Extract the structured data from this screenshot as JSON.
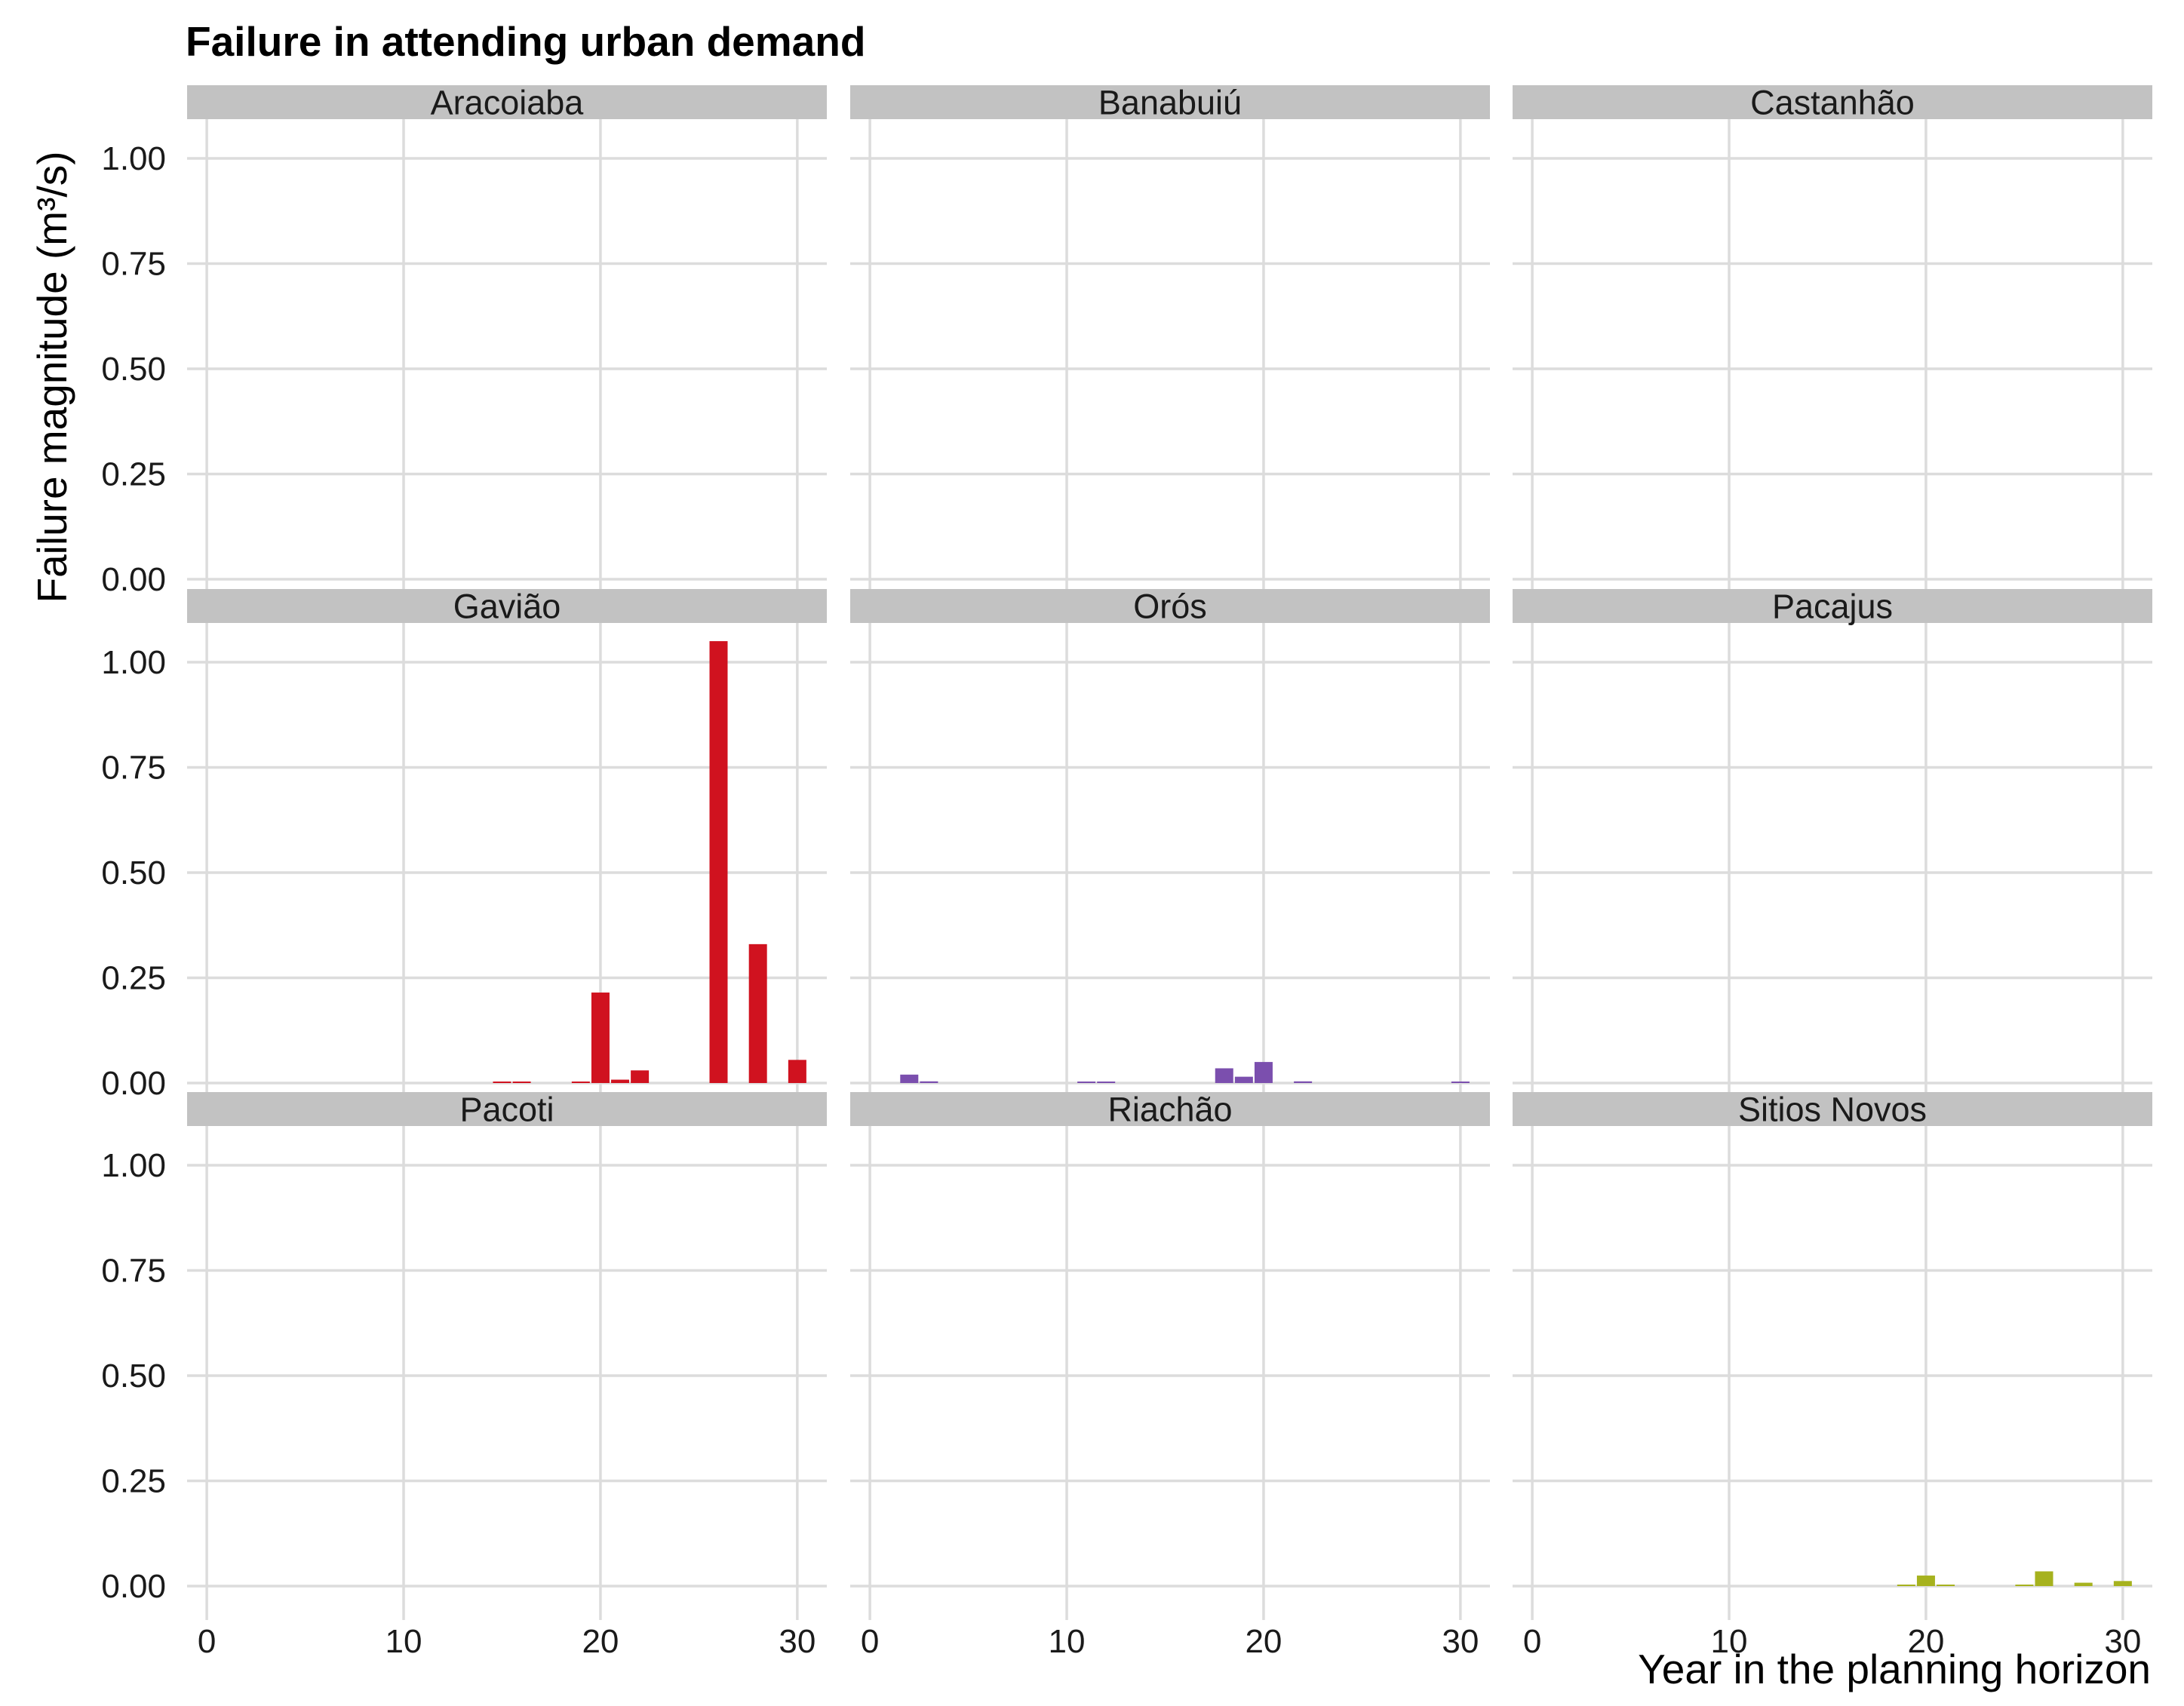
{
  "chart_data": {
    "type": "bar",
    "layout": "facet_wrap",
    "title": "Failure in attending urban demand",
    "xlabel": "Year in the planning horizon",
    "ylabel": "Failure magnitude (m³/s)",
    "xlim": [
      -1,
      31.5
    ],
    "ylim": [
      0,
      1.1
    ],
    "xticks": [
      0,
      10,
      20,
      30
    ],
    "yticks": [
      0,
      0.25,
      0.5,
      0.75,
      1.0
    ],
    "ytick_labels": [
      "0.00",
      "0.25",
      "0.50",
      "0.75",
      "1.00"
    ],
    "grid": true,
    "legend": "none",
    "panels": [
      {
        "name": "Aracoiaba",
        "color": "#d7191c",
        "bars": []
      },
      {
        "name": "Banabuiú",
        "color": "#7b4fae",
        "bars": []
      },
      {
        "name": "Castanhão",
        "color": "#a6b21e",
        "bars": []
      },
      {
        "name": "Gavião",
        "color": "#d0121f",
        "bars": [
          {
            "x": 15,
            "y": 0.003
          },
          {
            "x": 16,
            "y": 0.003
          },
          {
            "x": 19,
            "y": 0.003
          },
          {
            "x": 20,
            "y": 0.215
          },
          {
            "x": 21,
            "y": 0.008
          },
          {
            "x": 22,
            "y": 0.03
          },
          {
            "x": 26,
            "y": 1.05
          },
          {
            "x": 28,
            "y": 0.33
          },
          {
            "x": 30,
            "y": 0.055
          }
        ]
      },
      {
        "name": "Orós",
        "color": "#7b4fae",
        "bars": [
          {
            "x": 2,
            "y": 0.02
          },
          {
            "x": 3,
            "y": 0.004
          },
          {
            "x": 11,
            "y": 0.002
          },
          {
            "x": 12,
            "y": 0.002
          },
          {
            "x": 18,
            "y": 0.035
          },
          {
            "x": 19,
            "y": 0.015
          },
          {
            "x": 20,
            "y": 0.05
          },
          {
            "x": 22,
            "y": 0.004
          },
          {
            "x": 30,
            "y": 0.002
          }
        ]
      },
      {
        "name": "Pacajus",
        "color": "#a6b21e",
        "bars": []
      },
      {
        "name": "Pacoti",
        "color": "#d7191c",
        "bars": []
      },
      {
        "name": "Riachão",
        "color": "#7b4fae",
        "bars": []
      },
      {
        "name": "Sitios Novos",
        "color": "#a6b21e",
        "bars": [
          {
            "x": 19,
            "y": 0.002
          },
          {
            "x": 20,
            "y": 0.025
          },
          {
            "x": 21,
            "y": 0.003
          },
          {
            "x": 25,
            "y": 0.002
          },
          {
            "x": 26,
            "y": 0.035
          },
          {
            "x": 28,
            "y": 0.008
          },
          {
            "x": 30,
            "y": 0.012
          }
        ]
      }
    ]
  }
}
